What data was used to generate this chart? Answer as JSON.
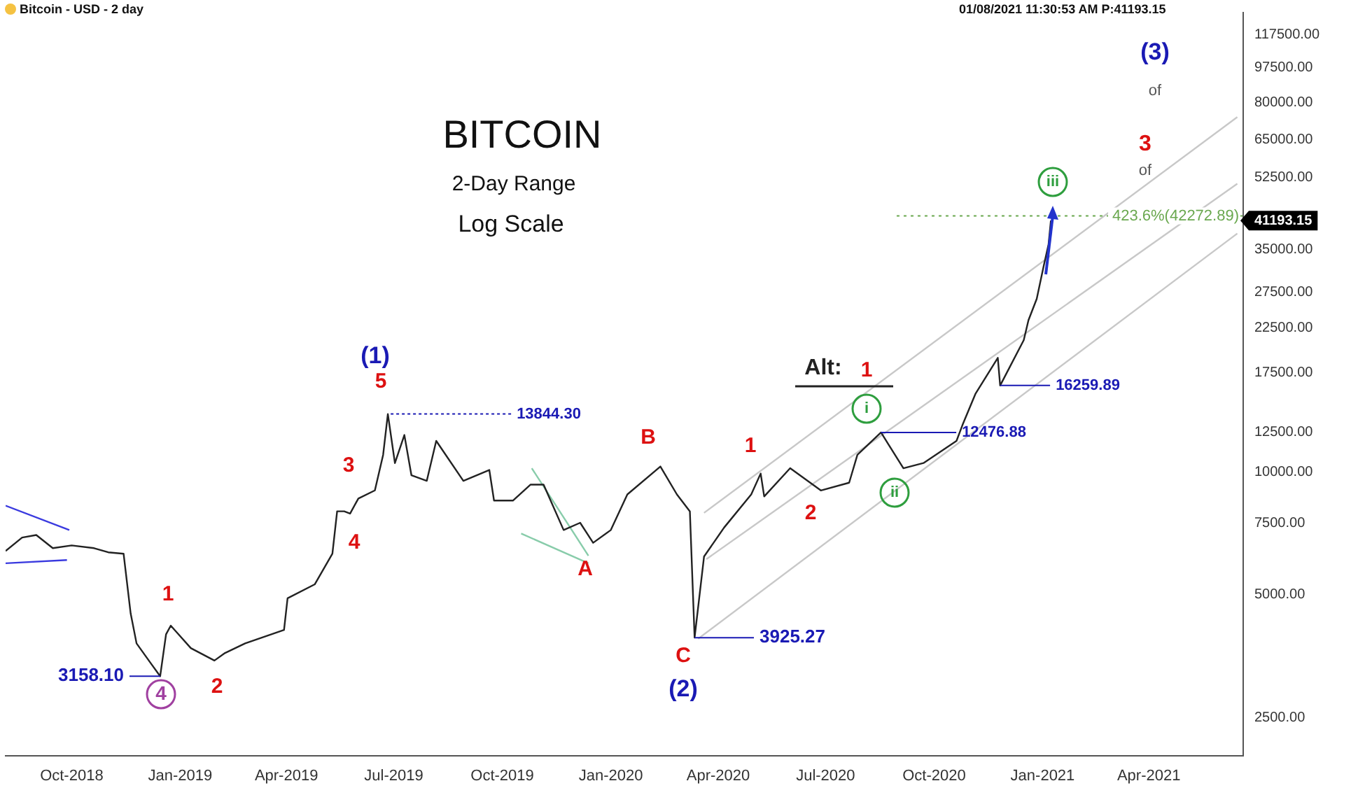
{
  "chart_data": {
    "type": "line",
    "title": "BITCOIN",
    "subtitle": "2-Day Range",
    "log": "y",
    "grid": false,
    "legend": false,
    "marker": "none",
    "line_style": "solid",
    "xlim": [
      "2018-08-06",
      "2021-06-20"
    ],
    "xticks": [
      {
        "value": "2018-10-01",
        "label": "Oct-2018"
      },
      {
        "value": "2019-01-01",
        "label": "Jan-2019"
      },
      {
        "value": "2019-04-01",
        "label": "Apr-2019"
      },
      {
        "value": "2019-07-01",
        "label": "Jul-2019"
      },
      {
        "value": "2019-10-01",
        "label": "Oct-2019"
      },
      {
        "value": "2020-01-01",
        "label": "Jan-2020"
      },
      {
        "value": "2020-04-01",
        "label": "Apr-2020"
      },
      {
        "value": "2020-07-01",
        "label": "Jul-2020"
      },
      {
        "value": "2020-10-01",
        "label": "Oct-2020"
      },
      {
        "value": "2021-01-01",
        "label": "Jan-2021"
      },
      {
        "value": "2021-04-01",
        "label": "Apr-2021"
      }
    ],
    "ylim": [
      2020,
      133000
    ],
    "yticks": [
      {
        "value": 2500,
        "label": "2500.00"
      },
      {
        "value": 5000,
        "label": "5000.00"
      },
      {
        "value": 7500,
        "label": "7500.00"
      },
      {
        "value": 10000,
        "label": "10000.00"
      },
      {
        "value": 12500,
        "label": "12500.00"
      },
      {
        "value": 17500,
        "label": "17500.00"
      },
      {
        "value": 22500,
        "label": "22500.00"
      },
      {
        "value": 27500,
        "label": "27500.00"
      },
      {
        "value": 35000,
        "label": "35000.00"
      },
      {
        "value": 52500,
        "label": "52500.00"
      },
      {
        "value": 65000,
        "label": "65000.00"
      },
      {
        "value": 80000,
        "label": "80000.00"
      },
      {
        "value": 97500,
        "label": "97500.00"
      },
      {
        "value": 117500,
        "label": "117500.00"
      }
    ],
    "series": [
      {
        "color": "#222222",
        "x": [
          "2018-08-06",
          "2018-08-20",
          "2018-09-01",
          "2018-09-15",
          "2018-10-01",
          "2018-10-20",
          "2018-11-01",
          "2018-11-14",
          "2018-11-20",
          "2018-11-25",
          "2018-12-07",
          "2018-12-15",
          "2018-12-20",
          "2018-12-24",
          "2019-01-10",
          "2019-01-30",
          "2019-02-08",
          "2019-02-25",
          "2019-03-30",
          "2019-04-02",
          "2019-04-25",
          "2019-05-10",
          "2019-05-14",
          "2019-05-20",
          "2019-05-25",
          "2019-06-01",
          "2019-06-15",
          "2019-06-22",
          "2019-06-26",
          "2019-07-02",
          "2019-07-10",
          "2019-07-16",
          "2019-07-29",
          "2019-08-06",
          "2019-08-29",
          "2019-09-20",
          "2019-09-24",
          "2019-10-10",
          "2019-10-25",
          "2019-11-05",
          "2019-11-22",
          "2019-12-06",
          "2019-12-17",
          "2020-01-01",
          "2020-01-15",
          "2020-02-12",
          "2020-02-26",
          "2020-03-08",
          "2020-03-12",
          "2020-03-20",
          "2020-04-06",
          "2020-04-29",
          "2020-05-07",
          "2020-05-10",
          "2020-06-01",
          "2020-06-27",
          "2020-07-21",
          "2020-07-28",
          "2020-08-17",
          "2020-09-05",
          "2020-09-22",
          "2020-10-20",
          "2020-10-25",
          "2020-11-05",
          "2020-11-24",
          "2020-11-26",
          "2020-12-16",
          "2020-12-20",
          "2020-12-27",
          "2021-01-02",
          "2021-01-06",
          "2021-01-08"
        ],
        "values": [
          6400,
          6900,
          7000,
          6500,
          6600,
          6500,
          6350,
          6300,
          4500,
          3800,
          3400,
          3158.1,
          4000,
          4200,
          3700,
          3450,
          3600,
          3800,
          4100,
          4900,
          5300,
          6300,
          8000,
          8000,
          7900,
          8600,
          9000,
          11000,
          13844.3,
          10500,
          12300,
          9800,
          9500,
          11900,
          9500,
          10100,
          8500,
          8500,
          9300,
          9300,
          7200,
          7500,
          6700,
          7200,
          8800,
          10300,
          8800,
          8000,
          3925.27,
          6200,
          7300,
          8800,
          9900,
          8700,
          10200,
          9000,
          9400,
          11000,
          12476.88,
          10200,
          10500,
          11900,
          13000,
          15500,
          19000,
          16259.89,
          21000,
          23500,
          26500,
          32000,
          36000,
          41193.15
        ]
      },
      {
        "color": "#c8c8c8",
        "x": [
          "2020-03-20",
          "2021-06-15"
        ],
        "values": [
          7930,
          73800
        ]
      },
      {
        "color": "#c8c8c8",
        "x": [
          "2020-03-22",
          "2021-06-15"
        ],
        "values": [
          6110,
          50700
        ]
      },
      {
        "color": "#c8c8c8",
        "x": [
          "2020-03-15",
          "2021-06-15"
        ],
        "values": [
          3900,
          38300
        ]
      },
      {
        "color": "#3a3adf",
        "x": [
          "2018-08-06",
          "2018-09-29"
        ],
        "values": [
          8260,
          7200
        ]
      },
      {
        "color": "#3a3adf",
        "x": [
          "2018-08-06",
          "2018-09-27"
        ],
        "values": [
          5970,
          6080
        ]
      },
      {
        "color": "#88ccaa",
        "x": [
          "2019-10-26",
          "2019-12-13"
        ],
        "values": [
          10200,
          6230
        ]
      },
      {
        "color": "#88ccaa",
        "x": [
          "2019-10-17",
          "2019-12-13"
        ],
        "values": [
          7060,
          5970
        ]
      }
    ],
    "ref_lines": [
      {
        "axis": "y",
        "value": 42272.89,
        "label": "423.6%(42272.89)",
        "color": "#6aa84f",
        "line_style": "dotted"
      }
    ],
    "annotations": [
      "Bitcoin - USD - 2 day",
      "01/08/2021 11:30:53 AM P:41193.15",
      "Log Scale",
      "41193.15",
      "(1)",
      "5",
      "3",
      "4",
      "1",
      "2",
      "4",
      {
        "text": "3158.10",
        "x": "2018-12-15",
        "y": 3158.1
      },
      {
        "text": "13844.30",
        "x": "2019-06-26",
        "y": 13844.3
      },
      "A",
      "B",
      "C",
      "(2)",
      {
        "text": "3925.27",
        "x": "2020-03-12",
        "y": 3925.27
      },
      "1",
      "2",
      "Alt:",
      "1",
      "i",
      {
        "text": "12476.88",
        "x": "2020-08-17",
        "y": 12476.88
      },
      "ii",
      {
        "text": "16259.89",
        "x": "2020-11-26",
        "y": 16259.89
      },
      "iii",
      "3",
      "of",
      "(3)",
      "of"
    ]
  }
}
